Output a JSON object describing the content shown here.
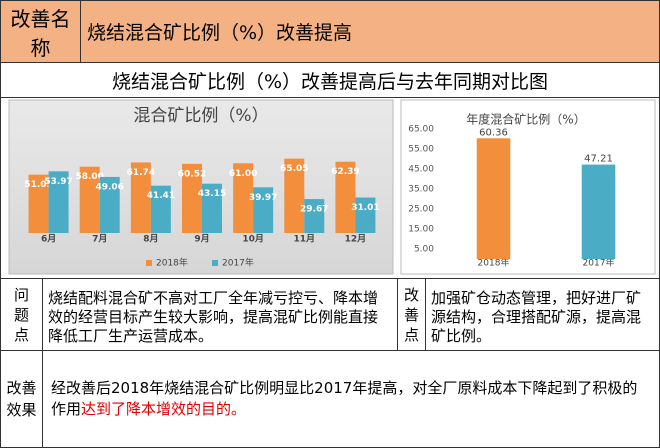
{
  "header": {
    "label": "改善名称",
    "title": "烧结混合矿比例（%）改善提高"
  },
  "comparison_title": "烧结混合矿比例（%）改善提高后与去年同期对比图",
  "chart_data": [
    {
      "type": "bar",
      "title": "混合矿比例（%）",
      "categories": [
        "6月",
        "7月",
        "8月",
        "9月",
        "10月",
        "11月",
        "12月"
      ],
      "series": [
        {
          "name": "2018年",
          "color": "#f28e3c",
          "values": [
            51.05,
            58,
            61.74,
            60.52,
            61,
            65.05,
            62.39
          ],
          "value_labels": [
            "51.05",
            "58.00",
            "61.74",
            "60.52",
            "61.00",
            "65.05",
            "62.39"
          ]
        },
        {
          "name": "2017年",
          "color": "#4bacc6",
          "values": [
            53.97,
            49.06,
            41.41,
            43.15,
            39.97,
            29.67,
            31.01
          ],
          "value_labels": [
            "53.97",
            "49.06",
            "41.41",
            "43.15",
            "39.97",
            "29.67",
            "31.01"
          ]
        }
      ],
      "ylim": [
        0,
        70
      ],
      "legend": "bottom"
    },
    {
      "type": "bar",
      "title": "年度混合矿比例（%）",
      "categories": [
        "2018年",
        "2017年"
      ],
      "values": [
        60.36,
        47.21
      ],
      "colors": [
        "#f28e3c",
        "#4bacc6"
      ],
      "ylim": [
        0,
        65
      ],
      "yticks": [
        {
          "value": 5,
          "label": "5.00"
        },
        {
          "value": 15,
          "label": "15.00"
        },
        {
          "value": 25,
          "label": "25.00"
        },
        {
          "value": 35,
          "label": "35.00"
        },
        {
          "value": 45,
          "label": "45.00"
        },
        {
          "value": 55,
          "label": "55.00"
        },
        {
          "value": 65,
          "label": "65.00"
        }
      ]
    }
  ],
  "problem": {
    "label": "问题点",
    "text": "烧结配料混合矿不高对工厂全年减亏控亏、降本增效的经营目标产生较大影响，提高混矿比例能直接降低工厂生产运营成本。"
  },
  "improvement": {
    "label": "改善点",
    "text": "加强矿仓动态管理，把好进厂矿源结构，合理搭配矿源，提高混矿比例。"
  },
  "effect": {
    "label": "改善效果",
    "text": "经改善后2018年烧结混合矿比例明显比2017年提高，对全厂原料成本下降起到了积极的作用",
    "highlight": "达到了降本增效的目的。"
  }
}
